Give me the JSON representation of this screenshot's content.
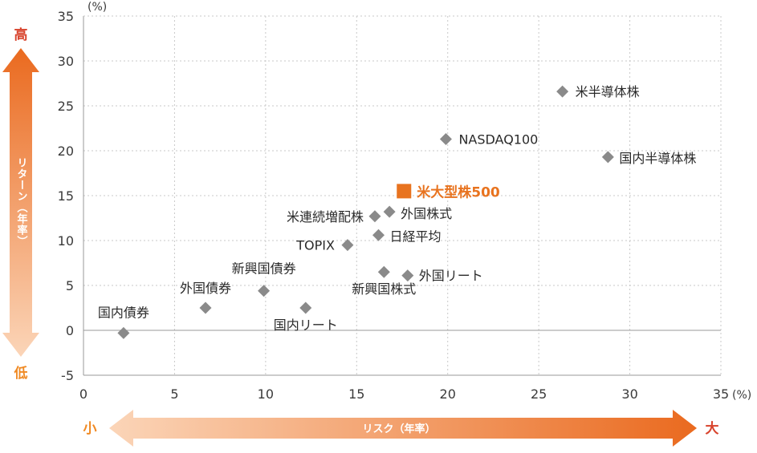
{
  "chart_data": {
    "type": "scatter",
    "x_unit": "(%)",
    "y_unit": "(%)",
    "xlim": [
      0,
      35
    ],
    "ylim": [
      -5,
      35
    ],
    "x_ticks": [
      "0",
      "5",
      "10",
      "15",
      "20",
      "25",
      "30",
      "35"
    ],
    "y_ticks": [
      "-5",
      "0",
      "5",
      "10",
      "15",
      "20",
      "25",
      "30",
      "35"
    ],
    "grid": true,
    "points": [
      {
        "label": "国内債券",
        "x": 2.2,
        "y": -0.3,
        "marker": "diamond"
      },
      {
        "label": "外国債券",
        "x": 6.7,
        "y": 2.5,
        "marker": "diamond"
      },
      {
        "label": "新興国債券",
        "x": 9.9,
        "y": 4.4,
        "marker": "diamond"
      },
      {
        "label": "国内リート",
        "x": 12.2,
        "y": 2.5,
        "marker": "diamond"
      },
      {
        "label": "TOPIX",
        "x": 14.5,
        "y": 9.5,
        "marker": "diamond"
      },
      {
        "label": "米連続増配株",
        "x": 16.0,
        "y": 12.7,
        "marker": "diamond"
      },
      {
        "label": "外国株式",
        "x": 16.8,
        "y": 13.2,
        "marker": "diamond"
      },
      {
        "label": "日経平均",
        "x": 16.2,
        "y": 10.6,
        "marker": "diamond"
      },
      {
        "label": "新興国株式",
        "x": 16.5,
        "y": 6.5,
        "marker": "diamond"
      },
      {
        "label": "外国リート",
        "x": 17.8,
        "y": 6.1,
        "marker": "diamond"
      },
      {
        "label": "NASDAQ100",
        "x": 19.9,
        "y": 21.3,
        "marker": "diamond"
      },
      {
        "label": "米半導体株",
        "x": 26.3,
        "y": 26.6,
        "marker": "diamond"
      },
      {
        "label": "国内半導体株",
        "x": 28.8,
        "y": 19.3,
        "marker": "diamond"
      },
      {
        "label": "米大型株500",
        "x": 17.6,
        "y": 15.5,
        "marker": "square",
        "highlight": true
      }
    ]
  },
  "y_arrow": {
    "top_label": "高",
    "bottom_label": "低",
    "text": "リターン（年率）"
  },
  "x_arrow": {
    "left_label": "小",
    "right_label": "大",
    "text": "リスク（年率）"
  },
  "colors": {
    "marker": "#8a8a8a",
    "highlight": "#e8731f",
    "grid": "#c8c8c8",
    "arrow_dark": "#ea6a1f",
    "arrow_light": "#fbd5b8",
    "high_label": "#d8432c",
    "low_label": "#f08a24"
  }
}
